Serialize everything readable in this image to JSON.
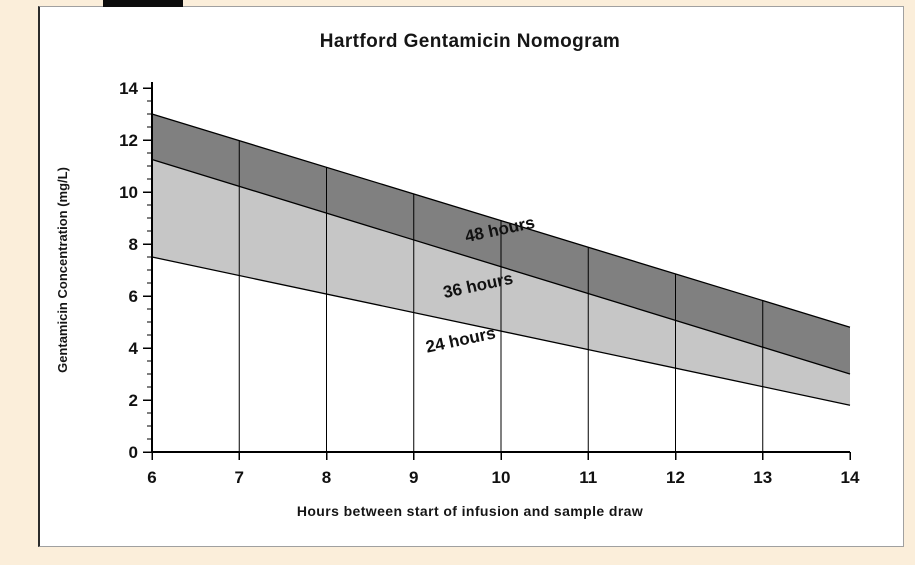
{
  "page": {
    "background": "#fbeeda",
    "panel_background": "#ffffff",
    "panel_border": "#a0a0a0"
  },
  "chart_data": {
    "type": "area",
    "title": "Hartford Gentamicin Nomogram",
    "xlabel": "Hours between start of infusion and sample draw",
    "ylabel": "Gentamicin Concentration (mg/L)",
    "xlim": [
      6,
      14
    ],
    "ylim": [
      0,
      14
    ],
    "x_ticks": [
      6,
      7,
      8,
      9,
      10,
      11,
      12,
      13,
      14
    ],
    "y_ticks": [
      0,
      2,
      4,
      6,
      8,
      10,
      12,
      14
    ],
    "y_minor_step": 0.5,
    "grid_on": true,
    "gridlines_x": [
      7,
      8,
      9,
      10,
      11,
      12,
      13
    ],
    "line_color": "#000000",
    "series": [
      {
        "name": "24-hour line",
        "x": [
          6,
          14
        ],
        "y": [
          7.5,
          1.8
        ]
      },
      {
        "name": "36-hour line",
        "x": [
          6,
          14
        ],
        "y": [
          11.25,
          3.0
        ]
      },
      {
        "name": "48-hour line",
        "x": [
          6,
          14
        ],
        "y": [
          13.0,
          4.8
        ]
      }
    ],
    "bands": [
      {
        "label": "36 hours band",
        "lower": "24-hour line",
        "upper": "36-hour line",
        "color": "#c6c6c6"
      },
      {
        "label": "48 hours band",
        "lower": "36-hour line",
        "upper": "48-hour line",
        "color": "#808080"
      }
    ],
    "region_labels": [
      {
        "text": "48 hours",
        "x": 10.0,
        "y": 8.35,
        "rotation": -12
      },
      {
        "text": "36 hours",
        "x": 9.75,
        "y": 6.2,
        "rotation": -12
      },
      {
        "text": "24 hours",
        "x": 9.55,
        "y": 4.1,
        "rotation": -12
      }
    ],
    "legend": null
  }
}
